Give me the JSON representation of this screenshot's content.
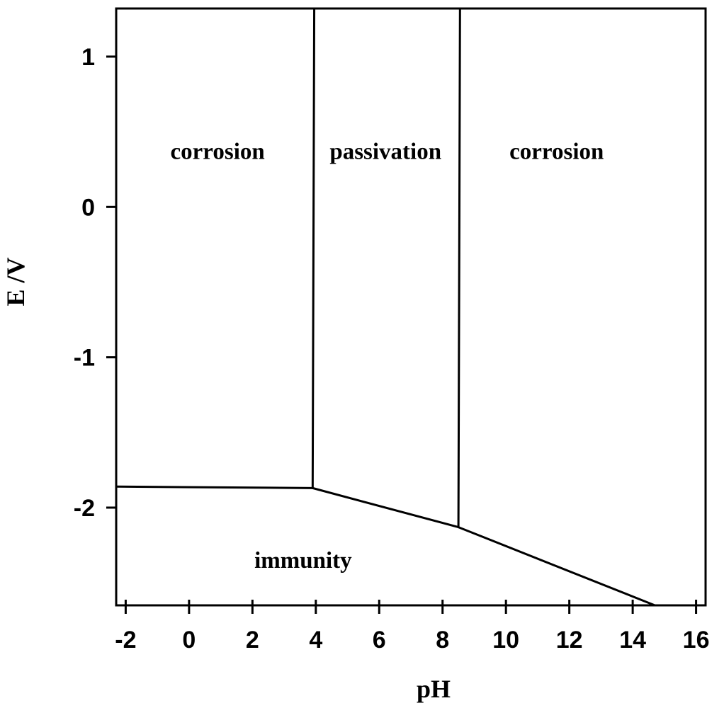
{
  "chart_data": {
    "type": "diagram",
    "xlabel": "pH",
    "ylabel": "E /V",
    "xlim": [
      -2.3,
      16.3
    ],
    "ylim": [
      -2.65,
      1.32
    ],
    "x_ticks": [
      -2,
      0,
      2,
      4,
      6,
      8,
      10,
      12,
      14,
      16
    ],
    "y_ticks": [
      1,
      0,
      -1,
      -2
    ],
    "boundaries": [
      {
        "name": "boundary-immunity-acid",
        "points": [
          [
            -2.3,
            -1.86
          ],
          [
            3.9,
            -1.87
          ]
        ]
      },
      {
        "name": "boundary-immunity-passivation",
        "points": [
          [
            3.9,
            -1.87
          ],
          [
            8.5,
            -2.13
          ]
        ]
      },
      {
        "name": "boundary-immunity-alkaline",
        "points": [
          [
            8.5,
            -2.13
          ],
          [
            14.7,
            -2.65
          ]
        ]
      },
      {
        "name": "boundary-corrosion-passivation",
        "points": [
          [
            3.9,
            -1.87
          ],
          [
            3.95,
            1.32
          ]
        ]
      },
      {
        "name": "boundary-passivation-corrosion",
        "points": [
          [
            8.5,
            -2.13
          ],
          [
            8.55,
            1.32
          ]
        ]
      }
    ],
    "regions": [
      {
        "name": "region-corrosion-acid",
        "label": "corrosion",
        "x": 0.9,
        "y": 0.32
      },
      {
        "name": "region-passivation",
        "label": "passivation",
        "x": 6.2,
        "y": 0.32
      },
      {
        "name": "region-corrosion-alkaline",
        "label": "corrosion",
        "x": 11.6,
        "y": 0.32
      },
      {
        "name": "region-immunity",
        "label": "immunity",
        "x": 3.6,
        "y": -2.4
      }
    ]
  }
}
